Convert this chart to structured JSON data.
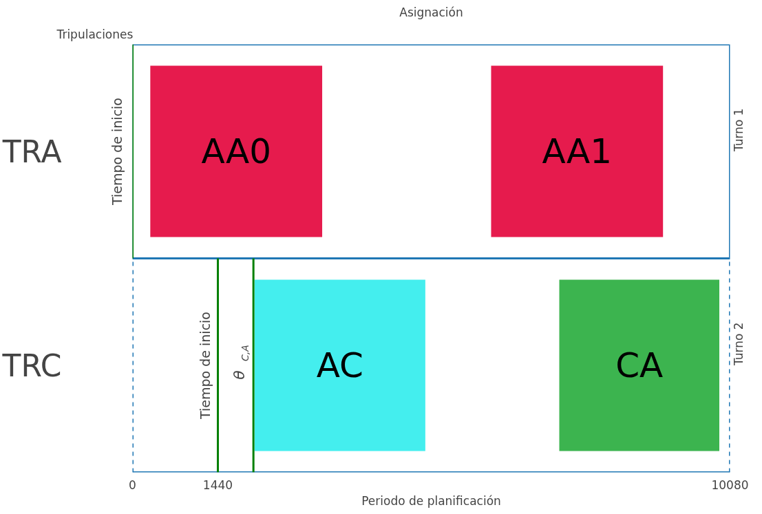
{
  "chart_data": {
    "type": "bar",
    "orientation": "horizontal",
    "title": "Asignación",
    "xlabel": "Periodo de planificación",
    "ylabel": "Tripulaciones",
    "categories": [
      "TRA",
      "TRC"
    ],
    "series": [
      {
        "name": "AA0",
        "color": "#e61b4d",
        "values": [
          2900,
          null
        ],
        "base": [
          300,
          null
        ]
      },
      {
        "name": "AA1",
        "color": "#e61b4d",
        "values": [
          2900,
          null
        ],
        "base": [
          6050,
          null
        ]
      },
      {
        "name": "AC",
        "color": "#44eeee",
        "values": [
          null,
          2880
        ],
        "base": [
          null,
          2060
        ]
      },
      {
        "name": "CA",
        "color": "#3cb44f",
        "values": [
          null,
          2700
        ],
        "base": [
          null,
          7200
        ]
      }
    ],
    "xlim": [
      0,
      10080
    ],
    "xticks": [
      0,
      1440,
      10080
    ],
    "ref_lines": [
      {
        "axis": "x",
        "value": 0,
        "label": "Tiempo de inicio",
        "color": "#008000"
      },
      {
        "axis": "x",
        "value": 1440,
        "label": "Tiempo de inicio",
        "color": "#008000"
      },
      {
        "axis": "x",
        "value": 2040,
        "label": "θ$_{C,A}$",
        "color": "#008000"
      }
    ],
    "annotations": [
      "Turno 1",
      "Turno 2"
    ],
    "grid": false
  }
}
